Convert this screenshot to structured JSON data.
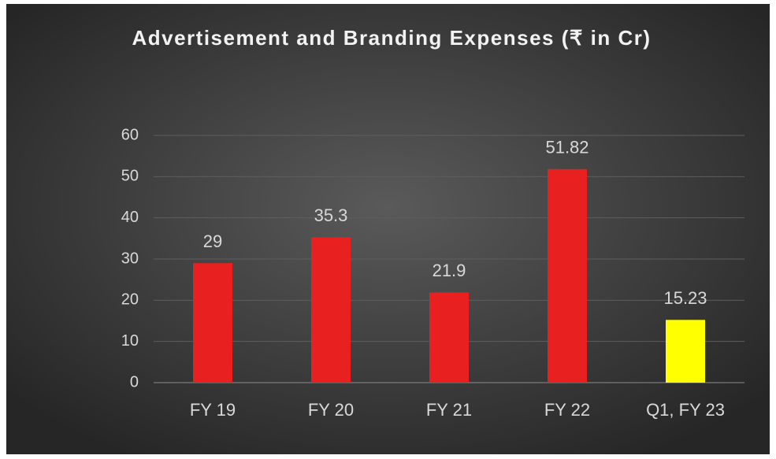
{
  "chart_data": {
    "type": "bar",
    "title": "Advertisement and Branding Expenses (₹ in Cr)",
    "categories": [
      "FY 19",
      "FY 20",
      "FY 21",
      "FY 22",
      "Q1, FY 23"
    ],
    "values": [
      29,
      35.3,
      21.9,
      51.82,
      15.23
    ],
    "colors": [
      "#e8201f",
      "#e8201f",
      "#e8201f",
      "#e8201f",
      "#ffff00"
    ],
    "ylim": [
      0,
      60
    ],
    "yticks": [
      0,
      10,
      20,
      30,
      40,
      50,
      60
    ],
    "grid": true
  }
}
